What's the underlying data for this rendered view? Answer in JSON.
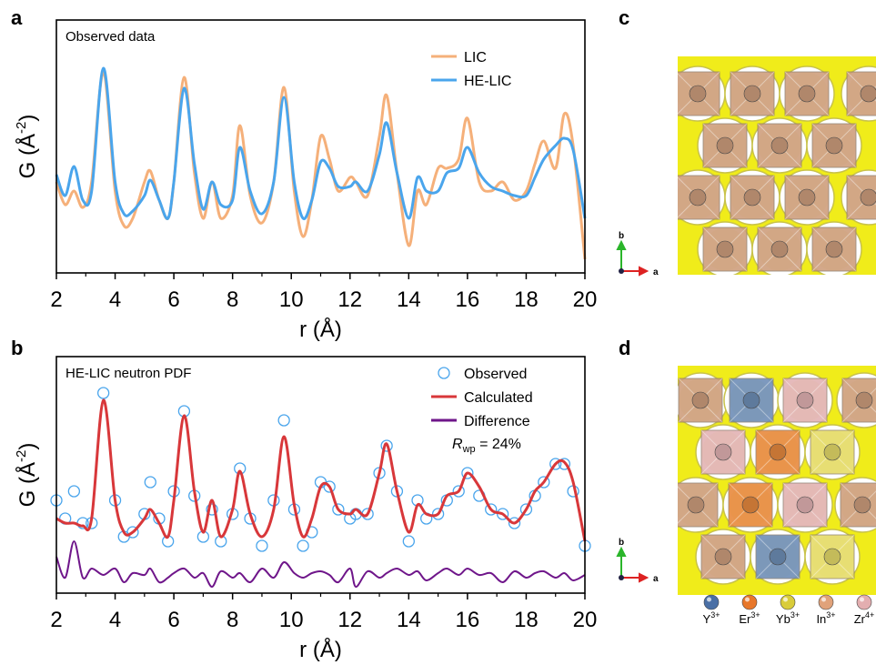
{
  "chart_data": [
    {
      "type": "line",
      "panel_label": "a",
      "annotation": "Observed data",
      "x_label": "r (Å)",
      "y_label": {
        "main": "G (Å",
        "sup": "-2",
        "end": ")"
      },
      "x": [
        2,
        2.3,
        2.6,
        2.9,
        3.2,
        3.6,
        4.0,
        4.3,
        4.6,
        5.0,
        5.2,
        5.5,
        5.8,
        6.0,
        6.35,
        6.7,
        7.0,
        7.3,
        7.6,
        8.0,
        8.25,
        8.6,
        9.0,
        9.4,
        9.75,
        10.1,
        10.4,
        10.7,
        11.0,
        11.3,
        11.6,
        12.0,
        12.2,
        12.6,
        13.0,
        13.25,
        13.6,
        14.0,
        14.3,
        14.6,
        15.0,
        15.3,
        15.7,
        16.0,
        16.4,
        16.8,
        17.2,
        17.6,
        18.0,
        18.3,
        18.6,
        19.0,
        19.3,
        19.6,
        20
      ],
      "xlim": [
        2,
        20
      ],
      "xticks": [
        2,
        4,
        6,
        8,
        10,
        12,
        14,
        16,
        18,
        20
      ],
      "ylim": [
        0,
        278
      ],
      "series": [
        {
          "name": "LIC",
          "color": "#f5b07a",
          "values": [
            100,
            75,
            90,
            72,
            100,
            220,
            90,
            52,
            60,
            100,
            112,
            80,
            60,
            100,
            215,
            110,
            60,
            100,
            60,
            85,
            162,
            85,
            55,
            100,
            204,
            90,
            40,
            80,
            150,
            125,
            90,
            105,
            100,
            85,
            150,
            195,
            110,
            30,
            90,
            75,
            115,
            115,
            125,
            170,
            100,
            90,
            100,
            80,
            90,
            120,
            145,
            115,
            175,
            140,
            15
          ]
        },
        {
          "name": "HE-LIC",
          "color": "#4aa5ec",
          "values": [
            108,
            85,
            117,
            80,
            90,
            225,
            100,
            65,
            68,
            85,
            102,
            80,
            60,
            100,
            203,
            120,
            70,
            100,
            75,
            80,
            138,
            90,
            65,
            100,
            193,
            100,
            60,
            80,
            122,
            115,
            95,
            95,
            100,
            90,
            130,
            165,
            110,
            60,
            105,
            90,
            90,
            110,
            115,
            138,
            110,
            95,
            90,
            85,
            85,
            105,
            125,
            140,
            148,
            135,
            60
          ]
        }
      ]
    },
    {
      "type": "line",
      "panel_label": "b",
      "annotation": "HE-LIC neutron PDF",
      "x_label": "r (Å)",
      "y_label": {
        "main": "G (Å",
        "sup": "-2",
        "end": ")"
      },
      "fit_note": {
        "symbol": "R",
        "sub": "wp",
        "text": " = 24%"
      },
      "x": [
        2,
        2.3,
        2.6,
        2.9,
        3.2,
        3.6,
        4.0,
        4.3,
        4.6,
        5.0,
        5.2,
        5.5,
        5.8,
        6.0,
        6.35,
        6.7,
        7.0,
        7.3,
        7.6,
        8.0,
        8.25,
        8.6,
        9.0,
        9.4,
        9.75,
        10.1,
        10.4,
        10.7,
        11.0,
        11.3,
        11.6,
        12.0,
        12.2,
        12.6,
        13.0,
        13.25,
        13.6,
        14.0,
        14.3,
        14.6,
        15.0,
        15.3,
        15.7,
        16.0,
        16.4,
        16.8,
        17.2,
        17.6,
        18.0,
        18.3,
        18.6,
        19.0,
        19.3,
        19.6,
        20
      ],
      "xlim": [
        2,
        20
      ],
      "xticks": [
        2,
        4,
        6,
        8,
        10,
        12,
        14,
        16,
        18,
        20
      ],
      "ylim": [
        0,
        260
      ],
      "series": [
        {
          "name": "Observed",
          "color": "#4aa5ec",
          "marker": "circle",
          "values": [
            102,
            82,
            112,
            77,
            77,
            220,
            102,
            62,
            67,
            87,
            122,
            82,
            57,
            112,
            200,
            107,
            62,
            92,
            57,
            87,
            137,
            82,
            52,
            102,
            190,
            92,
            52,
            67,
            122,
            117,
            92,
            82,
            87,
            87,
            132,
            162,
            112,
            57,
            102,
            82,
            87,
            102,
            112,
            132,
            107,
            92,
            87,
            77,
            92,
            107,
            122,
            142,
            142,
            112,
            52
          ]
        },
        {
          "name": "Calculated",
          "color": "#d8373a",
          "values": [
            82,
            77,
            77,
            74,
            82,
            212,
            102,
            67,
            67,
            82,
            92,
            77,
            62,
            102,
            195,
            112,
            67,
            102,
            62,
            92,
            134,
            87,
            62,
            92,
            172,
            97,
            62,
            82,
            117,
            117,
            92,
            87,
            92,
            87,
            132,
            164,
            112,
            67,
            97,
            87,
            87,
            107,
            112,
            132,
            117,
            92,
            87,
            77,
            92,
            112,
            122,
            142,
            144,
            122,
            57
          ]
        },
        {
          "name": "Difference",
          "color": "#6f168a",
          "values": [
            40,
            17,
            57,
            17,
            27,
            20,
            27,
            12,
            22,
            20,
            27,
            12,
            17,
            22,
            27,
            17,
            22,
            7,
            24,
            17,
            22,
            12,
            27,
            17,
            34,
            22,
            17,
            22,
            24,
            20,
            12,
            27,
            7,
            24,
            17,
            22,
            27,
            20,
            24,
            14,
            22,
            27,
            20,
            27,
            20,
            22,
            12,
            24,
            17,
            22,
            24,
            17,
            22,
            14,
            20
          ]
        }
      ]
    }
  ],
  "structures": [
    {
      "panel_label": "c",
      "axis_up": "b",
      "axis_right": "a"
    },
    {
      "panel_label": "d",
      "axis_up": "b",
      "axis_right": "a",
      "legend": [
        {
          "ion": "Y",
          "charge": "3+",
          "color": "#4a6fa5"
        },
        {
          "ion": "Er",
          "charge": "3+",
          "color": "#e8772a"
        },
        {
          "ion": "Yb",
          "charge": "3+",
          "color": "#d9cc3a"
        },
        {
          "ion": "In",
          "charge": "3+",
          "color": "#e0a27a"
        },
        {
          "ion": "Zr",
          "charge": "4+",
          "color": "#e3aeb0"
        }
      ]
    }
  ]
}
